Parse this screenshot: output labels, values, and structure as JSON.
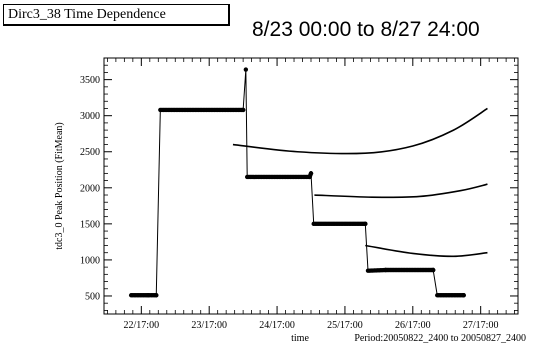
{
  "header": {
    "panel_title": "Dirc3_38 Time Dependence",
    "range_label": "8/23 00:00 to 8/27 24:00"
  },
  "chart_data": {
    "type": "line",
    "title": "Dirc3_38 Time Dependence",
    "subtitle": "8/23 00:00 to 8/27 24:00",
    "xlabel": "time",
    "ylabel": "tdc3_0 Peak Position (FitMean)",
    "x_note": "Period:20050822_2400 to 20050827_2400",
    "x_tick_labels": [
      "22/17:00",
      "23/17:00",
      "24/17:00",
      "25/17:00",
      "26/17:00",
      "27/17:00"
    ],
    "x_ticks_days": [
      0,
      1,
      2,
      3,
      4,
      5
    ],
    "y_ticks": [
      500,
      1000,
      1500,
      2000,
      2500,
      3000,
      3500
    ],
    "xlim_days": [
      -0.55,
      5.55
    ],
    "ylim": [
      250,
      3800
    ],
    "grid": false,
    "series": [
      {
        "values": [
          [
            -0.15,
            510
          ],
          [
            0.1,
            510
          ],
          [
            0.22,
            510
          ],
          [
            0.28,
            3080
          ],
          [
            1.5,
            3080
          ],
          [
            1.54,
            3640
          ],
          [
            1.56,
            2150
          ],
          [
            2.48,
            2150
          ],
          [
            2.5,
            2200
          ],
          [
            2.54,
            1500
          ],
          [
            3.3,
            1500
          ],
          [
            3.34,
            850
          ],
          [
            3.6,
            860
          ],
          [
            4.3,
            860
          ],
          [
            4.36,
            510
          ],
          [
            4.75,
            510
          ]
        ]
      }
    ],
    "curves": [
      {
        "points": [
          [
            1.35,
            2600
          ],
          [
            2.3,
            2500
          ],
          [
            3.3,
            2480
          ],
          [
            4.0,
            2580
          ],
          [
            4.6,
            2800
          ],
          [
            5.1,
            3100
          ]
        ]
      },
      {
        "points": [
          [
            2.55,
            1900
          ],
          [
            3.4,
            1870
          ],
          [
            4.1,
            1880
          ],
          [
            4.7,
            1960
          ],
          [
            5.1,
            2050
          ]
        ]
      },
      {
        "points": [
          [
            3.3,
            1200
          ],
          [
            4.0,
            1090
          ],
          [
            4.6,
            1050
          ],
          [
            5.1,
            1100
          ]
        ]
      }
    ]
  }
}
